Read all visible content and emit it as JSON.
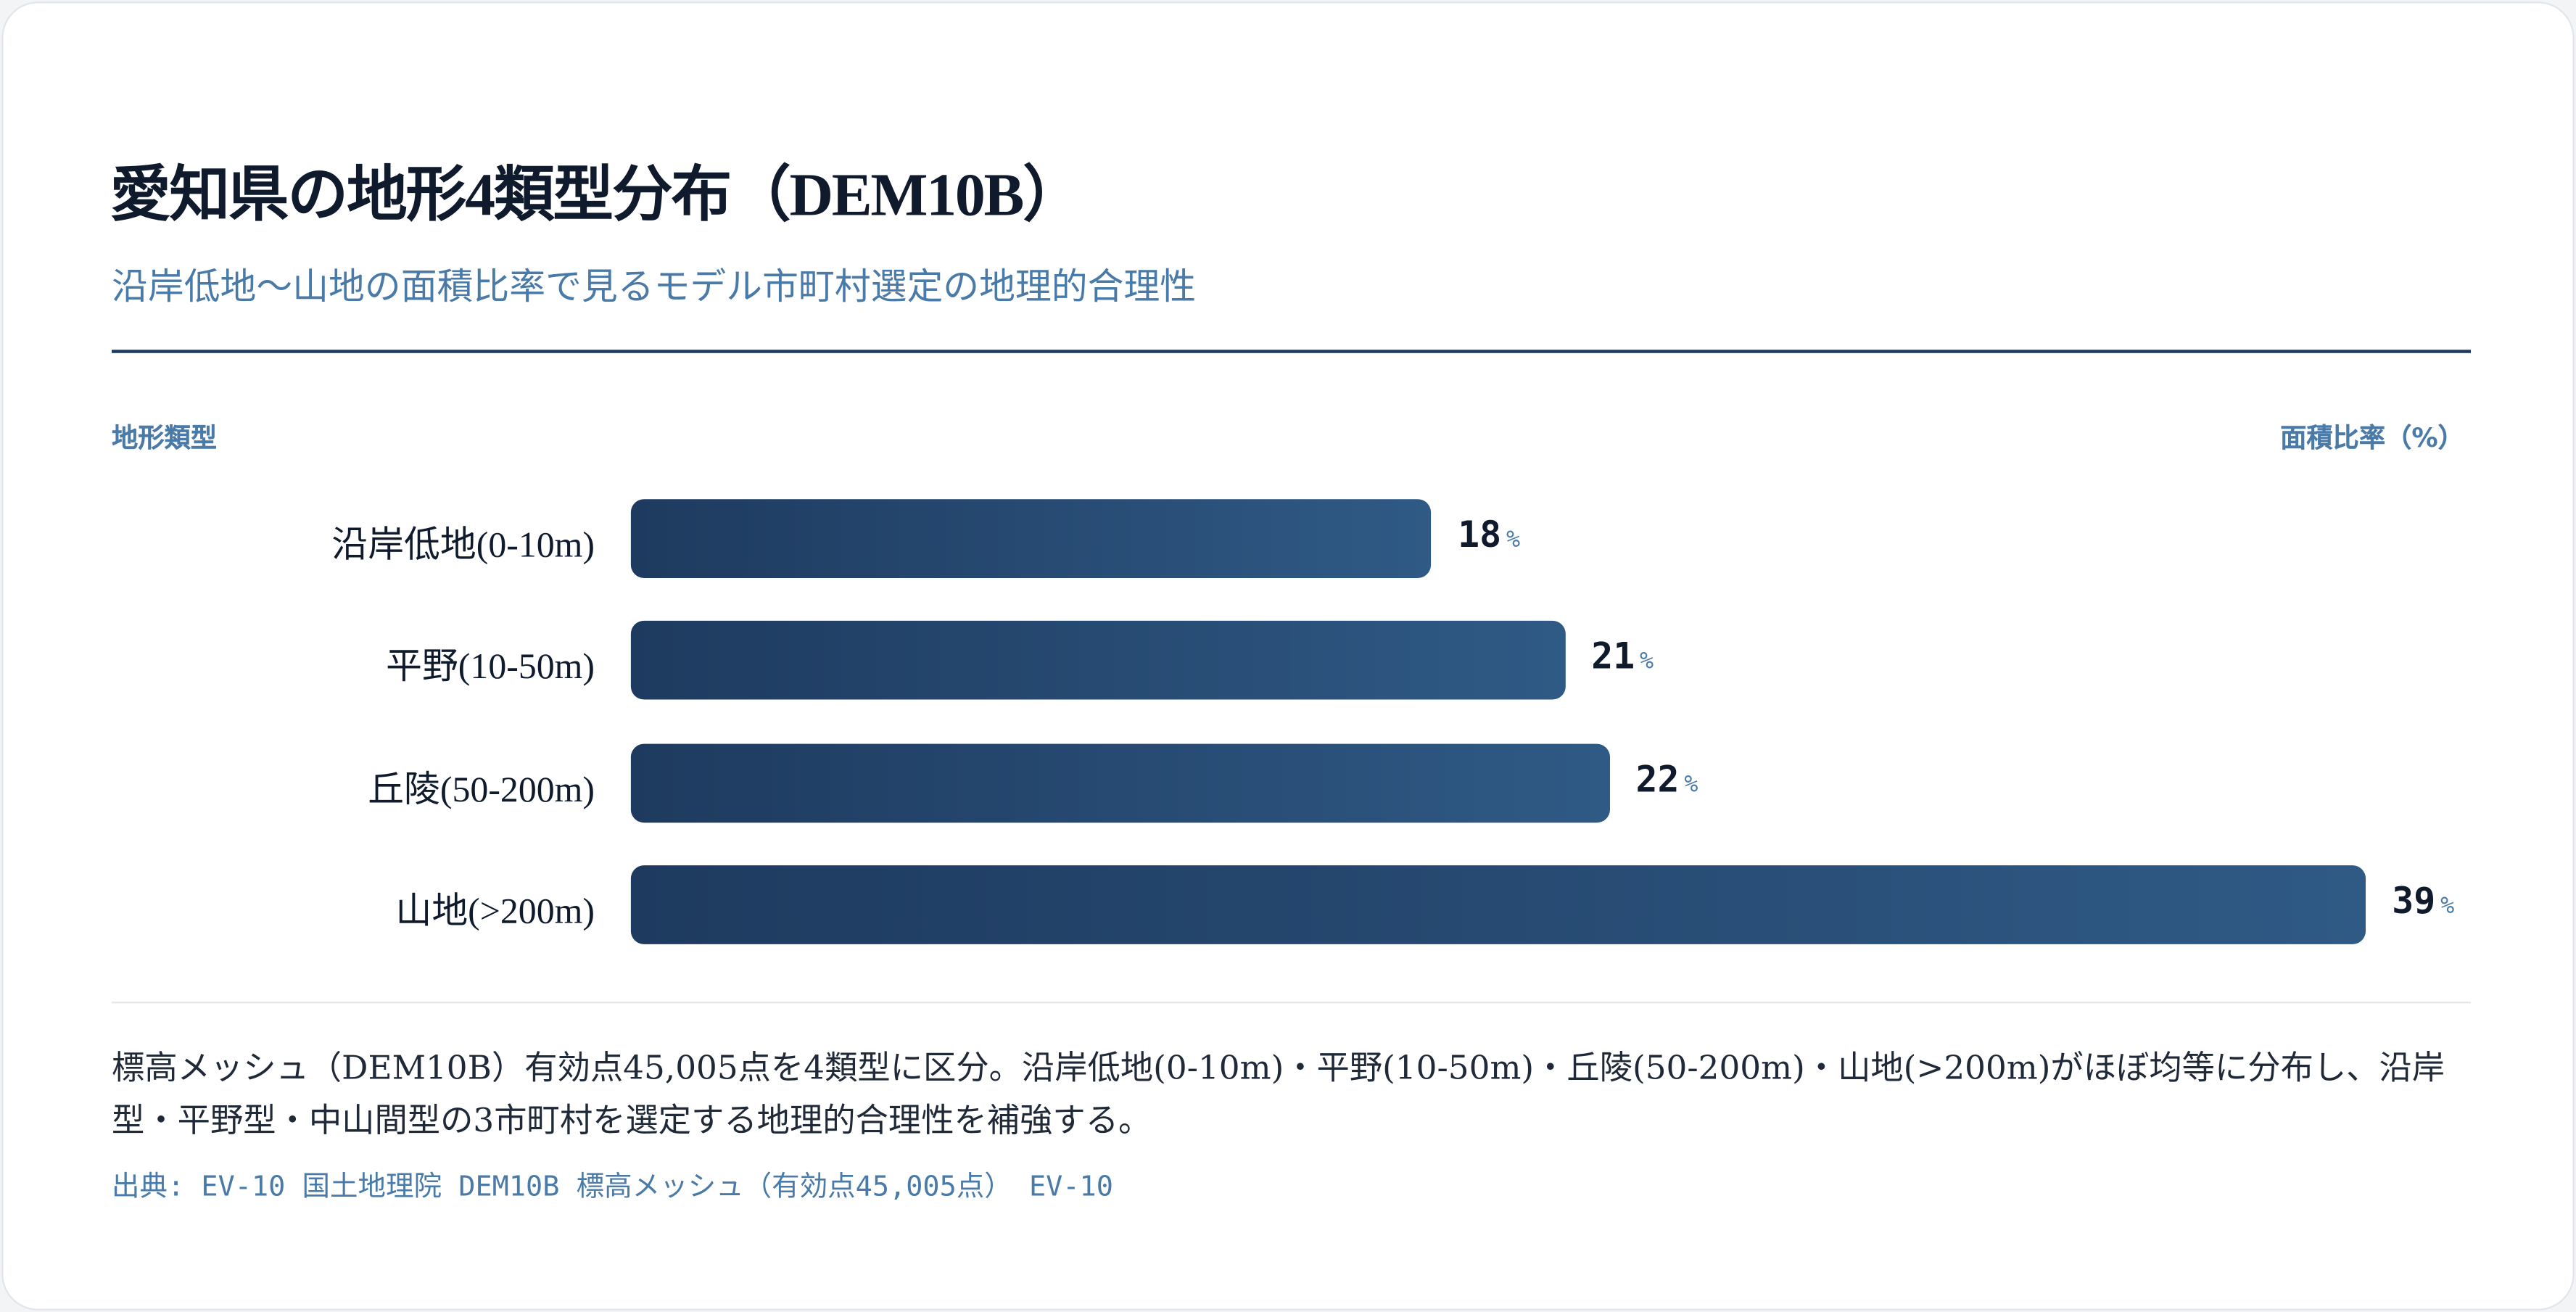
{
  "chart_data": {
    "type": "hbar",
    "title": "愛知県の地形4類型分布（DEM10B）",
    "subtitle": "沿岸低地〜山地の面積比率で見るモデル市町村選定の地理的合理性",
    "y_label": "地形類型",
    "x_label": "面積比率（%）",
    "categories": [
      "沿岸低地(0-10m)",
      "平野(10-50m)",
      "丘陵(50-200m)",
      "山地(>200m)"
    ],
    "values": [
      18,
      21,
      22,
      39
    ],
    "value_unit": "%",
    "color": [
      "#1e3a5f",
      "#2f5a85"
    ],
    "note": "標高メッシュ（DEM10B）有効点45,005点を4類型に区分。沿岸低地(0-10m)・平野(10-50m)・丘陵(50-200m)・山地(>200m)がほぼ均等に分布し、沿岸型・平野型・中山間型の3市町村を選定する地理的合理性を補強する。",
    "source": "出典: EV-10 国土地理院 DEM10B 標高メッシュ（有効点45,005点） EV-10"
  }
}
